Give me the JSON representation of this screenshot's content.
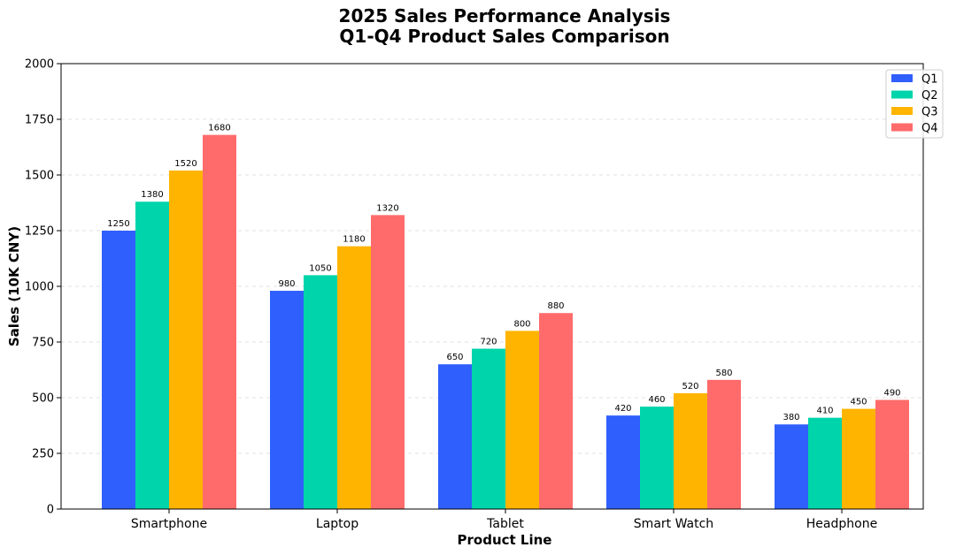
{
  "chart_data": {
    "type": "bar",
    "title": "2025 Sales Performance Analysis",
    "subtitle": "Q1-Q4 Product Sales Comparison",
    "xlabel": "Product Line",
    "ylabel": "Sales (10K CNY)",
    "ylim": [
      0,
      2000
    ],
    "yticks": [
      "0",
      "250",
      "500",
      "750",
      "1000",
      "1250",
      "1500",
      "1750",
      "2000"
    ],
    "grid": "horizontal-dashed",
    "legend_position": "top-right",
    "categories": [
      "Smartphone",
      "Laptop",
      "Tablet",
      "Smart Watch",
      "Headphone"
    ],
    "series": [
      {
        "name": "Q1",
        "color": "#2f5ffc",
        "values": [
          1250,
          980,
          650,
          420,
          380
        ]
      },
      {
        "name": "Q2",
        "color": "#00d4aa",
        "values": [
          1380,
          1050,
          720,
          460,
          410
        ]
      },
      {
        "name": "Q3",
        "color": "#ffb400",
        "values": [
          1520,
          1180,
          800,
          520,
          450
        ]
      },
      {
        "name": "Q4",
        "color": "#ff6b6b",
        "values": [
          1680,
          1320,
          880,
          580,
          490
        ]
      }
    ]
  }
}
